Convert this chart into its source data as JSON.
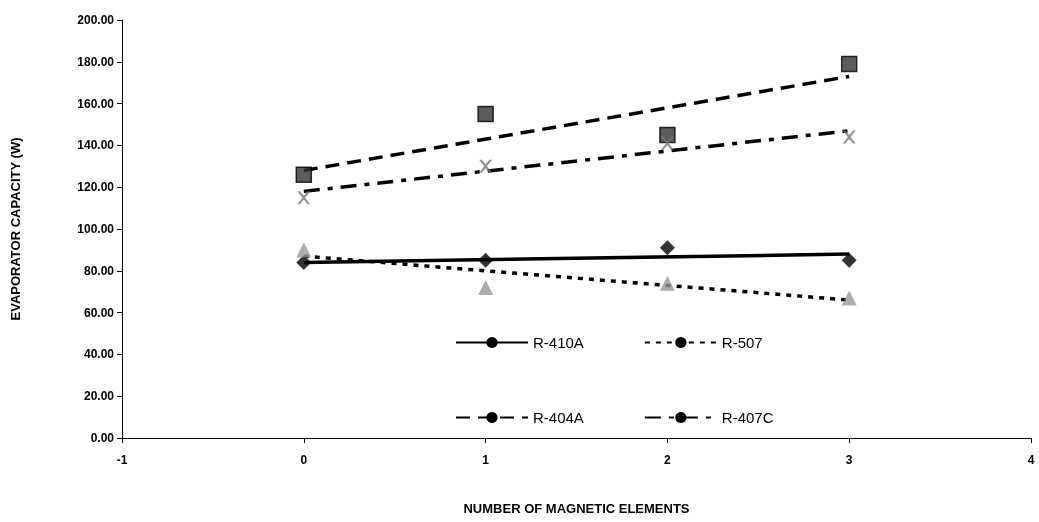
{
  "chart_data": {
    "type": "scatter",
    "xlabel": "NUMBER OF MAGNETIC ELEMENTS",
    "ylabel": "EVAPORATOR CAPACITY (W)",
    "xlim": [
      -1,
      4
    ],
    "xticks": [
      -1,
      0,
      1,
      2,
      3,
      4
    ],
    "ylim": [
      0,
      200
    ],
    "yticks": [
      {
        "value": 0,
        "label": "0.00"
      },
      {
        "value": 20,
        "label": "20.00"
      },
      {
        "value": 40,
        "label": "40.00"
      },
      {
        "value": 60,
        "label": "60.00"
      },
      {
        "value": 80,
        "label": "80.00"
      },
      {
        "value": 100,
        "label": "100.00"
      },
      {
        "value": 120,
        "label": "120.00"
      },
      {
        "value": 140,
        "label": "140.00"
      },
      {
        "value": 160,
        "label": "160.00"
      },
      {
        "value": 180,
        "label": "180.00"
      },
      {
        "value": 200,
        "label": "200.00"
      }
    ],
    "grid": false,
    "legend": "bottom",
    "series": [
      {
        "type": "line",
        "name": "R-410A",
        "color": "#000000",
        "x": [
          0,
          3
        ],
        "values": [
          84,
          88
        ],
        "line_style": "solid",
        "marker": "none"
      },
      {
        "type": "line",
        "name": "R-507",
        "color": "#000000",
        "x": [
          0,
          3
        ],
        "values": [
          87,
          66
        ],
        "line_style": "dotted",
        "marker": "none"
      },
      {
        "type": "line",
        "name": "R-404A",
        "color": "#000000",
        "x": [
          0,
          3
        ],
        "values": [
          128,
          173
        ],
        "line_style": "dashed",
        "marker": "none"
      },
      {
        "type": "line",
        "name": "R-407C",
        "color": "#000000",
        "x": [
          0,
          3
        ],
        "values": [
          118,
          147
        ],
        "line_style": "dashdot",
        "marker": "none"
      },
      {
        "color": "#000000",
        "x": [
          0,
          1,
          2,
          3
        ],
        "values": [
          84,
          85,
          91,
          85
        ],
        "marker": "diamond"
      },
      {
        "color": "#999999",
        "x": [
          0,
          1,
          2,
          3
        ],
        "values": [
          90,
          72,
          74,
          67
        ],
        "marker": "triangle"
      },
      {
        "color": "#333333",
        "x": [
          0,
          1,
          2,
          3
        ],
        "values": [
          126,
          155,
          145,
          179
        ],
        "marker": "square"
      },
      {
        "color": "#777777",
        "x": [
          0,
          1,
          2,
          3
        ],
        "values": [
          115,
          130,
          141,
          144
        ],
        "marker": "cross"
      }
    ]
  }
}
